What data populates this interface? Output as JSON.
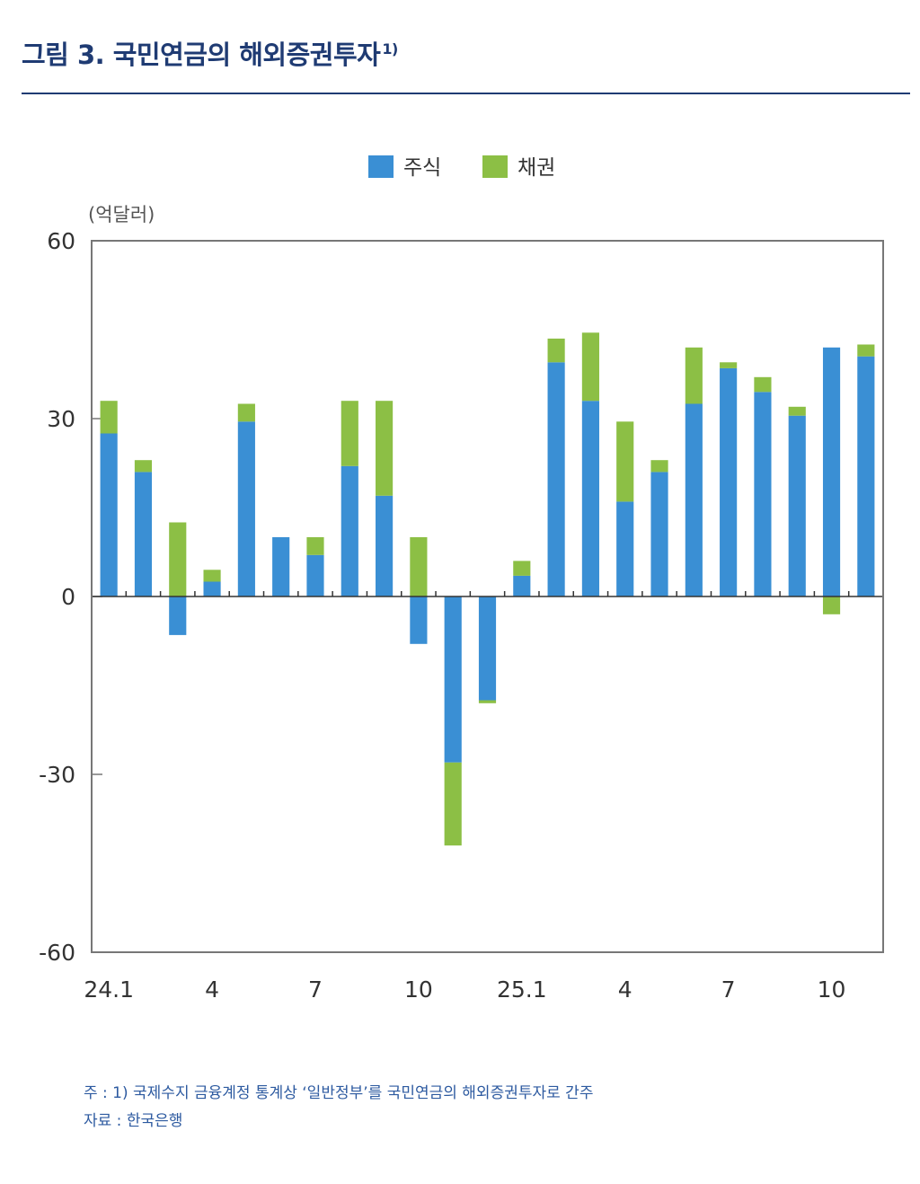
{
  "header": {
    "title": "그림 3. 국민연금의 해외증권투자",
    "footnote_mark": "1)"
  },
  "chart_data": {
    "type": "bar",
    "stacked": true,
    "unit_label": "(억달러)",
    "ylim": [
      -60,
      60
    ],
    "yticks": [
      60,
      30,
      0,
      -30,
      -60
    ],
    "x_tick_labels": [
      {
        "index": 0,
        "label": "24.1"
      },
      {
        "index": 3,
        "label": "4"
      },
      {
        "index": 6,
        "label": "7"
      },
      {
        "index": 9,
        "label": "10"
      },
      {
        "index": 12,
        "label": "25.1"
      },
      {
        "index": 15,
        "label": "4"
      },
      {
        "index": 18,
        "label": "7"
      },
      {
        "index": 21,
        "label": "10"
      }
    ],
    "categories": [
      "24.1",
      "24.2",
      "24.3",
      "24.4",
      "24.5",
      "24.6",
      "24.7",
      "24.8",
      "24.9",
      "24.10",
      "24.11",
      "24.12",
      "25.1",
      "25.2",
      "25.3",
      "25.4",
      "25.5",
      "25.6",
      "25.7",
      "25.8",
      "25.9",
      "25.10",
      "25.11"
    ],
    "series": [
      {
        "name": "주식",
        "color": "#3a8fd4",
        "values": [
          27.5,
          21,
          -6.5,
          2.5,
          29.5,
          10,
          7,
          22,
          17,
          -8,
          -28,
          -17.5,
          3.5,
          39.5,
          33,
          16,
          21,
          32.5,
          38.5,
          34.5,
          30.5,
          42,
          40.5
        ]
      },
      {
        "name": "채권",
        "color": "#8cbf45",
        "values": [
          5.5,
          2,
          12.5,
          2,
          3,
          0,
          3,
          11,
          16,
          10,
          -14,
          -0.5,
          2.5,
          4,
          11.5,
          13.5,
          2,
          9.5,
          1,
          2.5,
          1.5,
          -3,
          2
        ]
      }
    ]
  },
  "notes": {
    "line1": "주 : 1) 국제수지 금융계정 통계상 ‘일반정부’를 국민연금의 해외증권투자로 간주",
    "line2": "자료 : 한국은행"
  }
}
